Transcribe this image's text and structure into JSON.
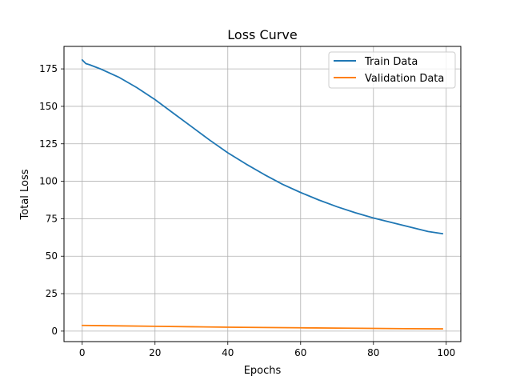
{
  "chart_data": {
    "type": "line",
    "title": "Loss Curve",
    "xlabel": "Epochs",
    "ylabel": "Total Loss",
    "xlim": [
      -5,
      104
    ],
    "ylim": [
      -7,
      190
    ],
    "xticks": [
      0,
      20,
      40,
      60,
      80,
      100
    ],
    "yticks": [
      0,
      25,
      50,
      75,
      100,
      125,
      150,
      175
    ],
    "grid": true,
    "legend": "top-right",
    "series": [
      {
        "name": "Train Data",
        "color": "#1f77b4",
        "x": [
          0,
          1,
          2,
          5,
          10,
          15,
          20,
          25,
          30,
          35,
          40,
          45,
          50,
          55,
          60,
          65,
          70,
          75,
          80,
          85,
          90,
          95,
          99
        ],
        "y": [
          181,
          178.5,
          177.8,
          175,
          169.5,
          162.5,
          154.5,
          145.5,
          136.5,
          127.5,
          119,
          111.5,
          104.5,
          98,
          92.5,
          87.5,
          83,
          79,
          75.5,
          72.5,
          69.5,
          66.5,
          65
        ]
      },
      {
        "name": "Validation Data",
        "color": "#ff7f0e",
        "x": [
          0,
          10,
          20,
          30,
          40,
          50,
          60,
          70,
          80,
          90,
          99
        ],
        "y": [
          3.8,
          3.5,
          3.2,
          2.9,
          2.6,
          2.4,
          2.2,
          2.0,
          1.8,
          1.6,
          1.5
        ]
      }
    ]
  }
}
